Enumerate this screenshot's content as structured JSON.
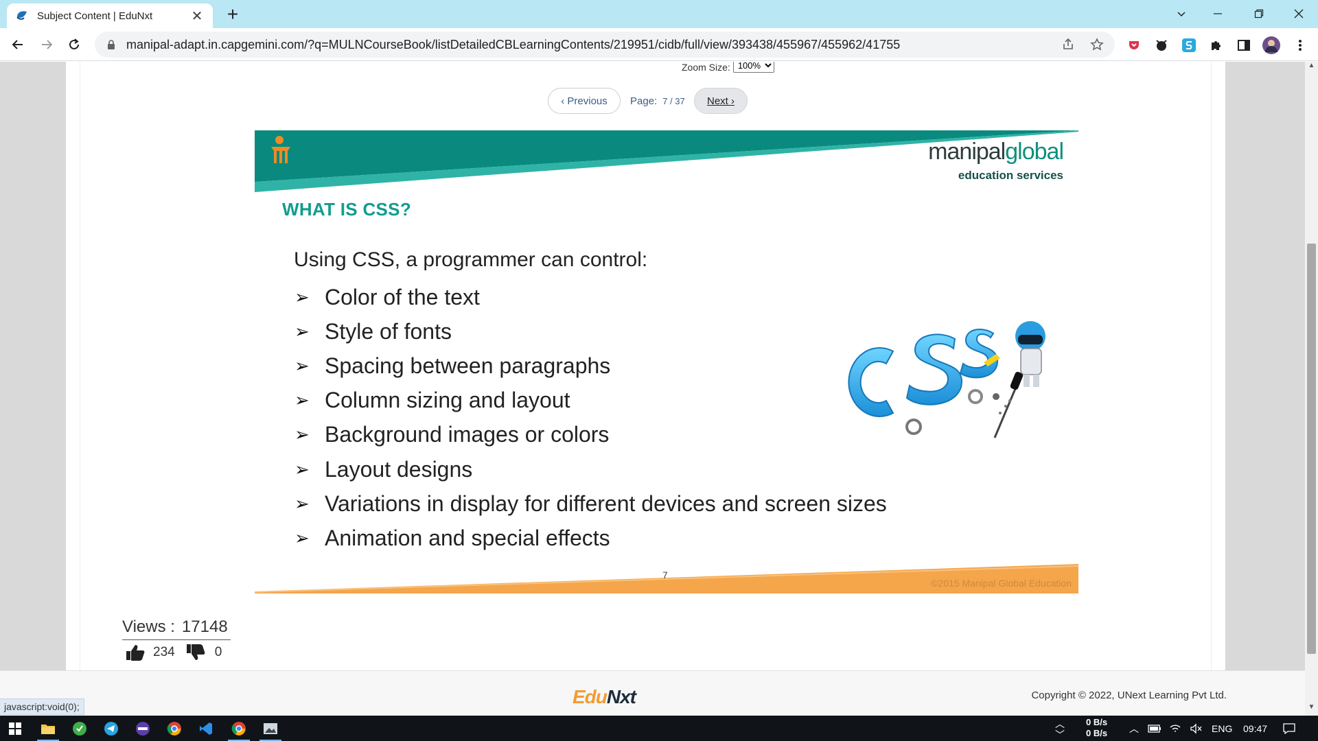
{
  "browser": {
    "tab_title": "Subject Content | EduNxt",
    "url": "manipal-adapt.in.capgemini.com/?q=MULNCourseBook/listDetailedCBLearningContents/219951/cidb/full/view/393438/455967/455962/41755",
    "status_tip": "javascript:void(0);"
  },
  "viewer": {
    "zoom_label": "Zoom Size:",
    "zoom_value": "100%",
    "prev_label": "‹ Previous",
    "page_label": "Page:",
    "page_value": "7 / 37",
    "next_label": "Next ›"
  },
  "slide": {
    "brand_name_a": "manipal",
    "brand_name_b": "global",
    "brand_sub": "education services",
    "title": "WHAT IS CSS?",
    "intro": "Using CSS, a programmer can control:",
    "bullets": [
      "Color of the text",
      "Style of fonts",
      "Spacing between paragraphs",
      "Column sizing and layout",
      "Background images or colors",
      "Layout designs",
      "Variations in display for different devices and screen sizes",
      "Animation and special effects"
    ],
    "bullet_marker": "➢",
    "page_number": "7",
    "copyright": "©2015 Manipal Global Education",
    "colors": {
      "teal": "#0a8a7e",
      "teal_light": "#2fb3a6",
      "orange": "#f5a54a",
      "title": "#129c8e"
    }
  },
  "stats": {
    "views_label": "Views :",
    "views_value": "17148",
    "likes": "234",
    "dislikes": "0"
  },
  "footer": {
    "logo_a": "Edu",
    "logo_b": "Nxt",
    "copyright": "Copyright © 2022, UNext Learning Pvt Ltd."
  },
  "taskbar": {
    "net_up": "0 B/s",
    "net_down": "0 B/s",
    "lang": "ENG",
    "time": "09:47"
  }
}
